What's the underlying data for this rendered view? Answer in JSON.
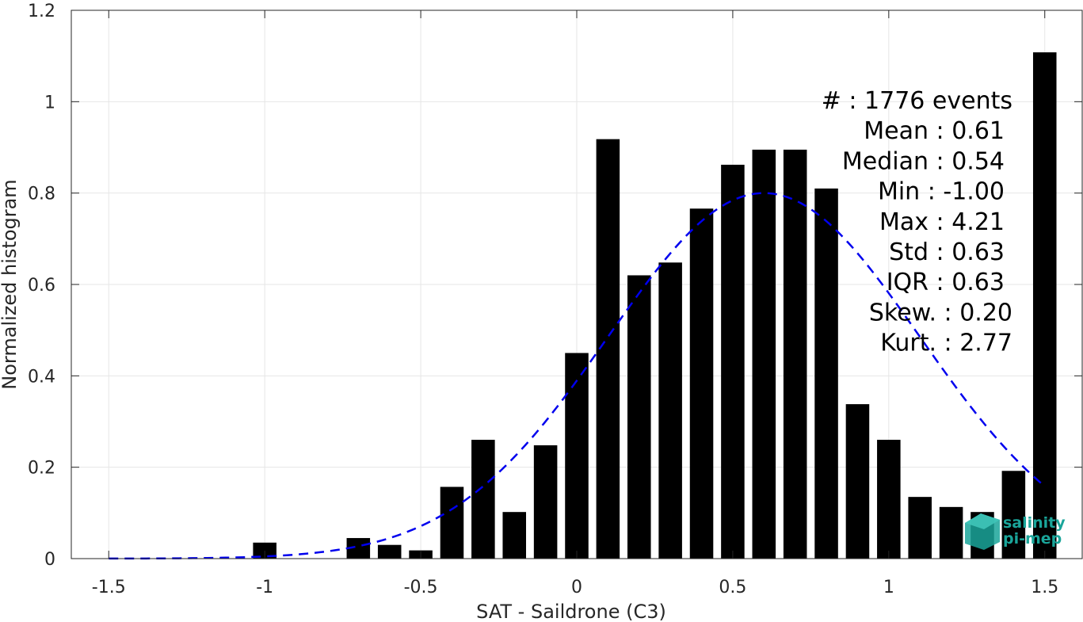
{
  "chart_data": {
    "type": "bar",
    "xlabel": "SAT - Saildrone (C3)",
    "ylabel": "Normalized histogram",
    "xlim": [
      -1.62,
      1.62
    ],
    "ylim": [
      0,
      1.2
    ],
    "xticks": [
      -1.5,
      -1,
      -0.5,
      0,
      0.5,
      1,
      1.5
    ],
    "xtick_labels": [
      "-1.5",
      "-1",
      "-0.5",
      "0",
      "0.5",
      "1",
      "1.5"
    ],
    "yticks": [
      0,
      0.2,
      0.4,
      0.6,
      0.8,
      1,
      1.2
    ],
    "ytick_labels": [
      "0",
      "0.2",
      "0.4",
      "0.6",
      "0.8",
      "1",
      "1.2"
    ],
    "grid": true,
    "bar_color": "#000000",
    "bar_width": 0.075,
    "bars": [
      {
        "x": -1.0,
        "y": 0.035
      },
      {
        "x": -0.7,
        "y": 0.045
      },
      {
        "x": -0.6,
        "y": 0.03
      },
      {
        "x": -0.5,
        "y": 0.018
      },
      {
        "x": -0.4,
        "y": 0.157
      },
      {
        "x": -0.3,
        "y": 0.26
      },
      {
        "x": -0.2,
        "y": 0.102
      },
      {
        "x": -0.1,
        "y": 0.248
      },
      {
        "x": 0.0,
        "y": 0.45
      },
      {
        "x": 0.1,
        "y": 0.918
      },
      {
        "x": 0.2,
        "y": 0.62
      },
      {
        "x": 0.3,
        "y": 0.648
      },
      {
        "x": 0.4,
        "y": 0.766
      },
      {
        "x": 0.5,
        "y": 0.862
      },
      {
        "x": 0.6,
        "y": 0.895
      },
      {
        "x": 0.7,
        "y": 0.895
      },
      {
        "x": 0.8,
        "y": 0.81
      },
      {
        "x": 0.9,
        "y": 0.338
      },
      {
        "x": 1.0,
        "y": 0.26
      },
      {
        "x": 1.1,
        "y": 0.135
      },
      {
        "x": 1.2,
        "y": 0.113
      },
      {
        "x": 1.3,
        "y": 0.102
      },
      {
        "x": 1.4,
        "y": 0.192
      },
      {
        "x": 1.5,
        "y": 1.108
      }
    ],
    "fit_curve": {
      "type": "gaussian",
      "color": "#0000ee",
      "style": "dashed",
      "mean": 0.6,
      "sigma": 0.5,
      "peak": 0.8,
      "x_range": [
        -1.5,
        1.5
      ]
    },
    "stats_lines": [
      "#  : 1776 events",
      "Mean : 0.61",
      "Median : 0.54",
      "Min : -1.00",
      "Max : 4.21",
      "Std : 0.63",
      "IQR : 0.63",
      "Skew. : 0.20",
      "Kurt. : 2.77"
    ]
  },
  "logo": {
    "line1": "salinity",
    "line2": "pi-mep",
    "color": "#1aa59a"
  }
}
